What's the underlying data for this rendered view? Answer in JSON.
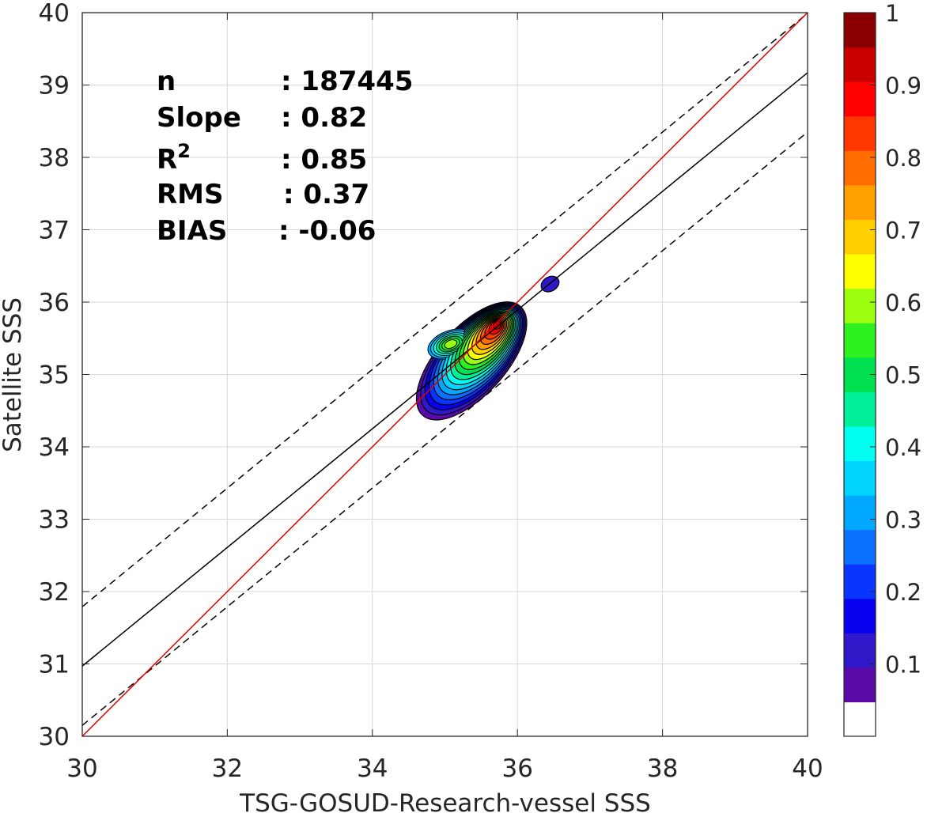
{
  "chart_data": {
    "type": "contour-scatter",
    "xlabel": "TSG-GOSUD-Research-vessel SSS",
    "ylabel": "Satellite SSS",
    "xlim": [
      30,
      40
    ],
    "ylim": [
      30,
      40
    ],
    "xticks": [
      "30",
      "32",
      "34",
      "36",
      "38",
      "40"
    ],
    "yticks": [
      "30",
      "31",
      "32",
      "33",
      "34",
      "35",
      "36",
      "37",
      "38",
      "39",
      "40"
    ],
    "grid": true,
    "stats": [
      {
        "label": "n",
        "sep": ": ",
        "value": "187445"
      },
      {
        "label": "Slope",
        "sep": ": ",
        "value": "0.82"
      },
      {
        "label": "R",
        "sup": "2",
        "sep": ": ",
        "value": "0.85"
      },
      {
        "label": "RMS",
        "sep": ": ",
        "value": "0.37"
      },
      {
        "label": "BIAS",
        "sep": ": ",
        "value": "-0.06"
      }
    ],
    "lines": {
      "identity": {
        "color": "#e00000",
        "from": [
          30,
          30
        ],
        "to": [
          40,
          40
        ]
      },
      "fit": {
        "color": "#000000",
        "from": [
          30,
          30.97
        ],
        "to": [
          40,
          39.17
        ]
      },
      "upper_bound": {
        "color": "#000000",
        "style": "dashed",
        "from": [
          30,
          31.79
        ],
        "to": [
          40,
          39.99
        ]
      },
      "lower_bound": {
        "color": "#000000",
        "style": "dashed",
        "from": [
          30,
          30.15
        ],
        "to": [
          40,
          38.35
        ]
      }
    },
    "density_contours": {
      "levels": [
        0.05,
        0.1,
        0.15,
        0.2,
        0.25,
        0.3,
        0.35,
        0.4,
        0.45,
        0.5,
        0.55,
        0.6,
        0.65,
        0.7,
        0.75,
        0.8,
        0.85,
        0.9,
        0.95
      ],
      "peak": [
        35.72,
        35.68
      ],
      "secondary_mode": [
        35.08,
        35.42
      ],
      "isolated_blob": [
        36.45,
        36.25
      ]
    },
    "colorbar": {
      "ticks": [
        "0.1",
        "0.2",
        "0.3",
        "0.4",
        "0.5",
        "0.6",
        "0.7",
        "0.8",
        "0.9",
        "1"
      ],
      "tick_values": [
        0.1,
        0.2,
        0.3,
        0.4,
        0.5,
        0.6,
        0.7,
        0.8,
        0.9,
        1.0
      ],
      "min": 0,
      "max": 1,
      "colors": [
        "#ffffff",
        "#5a0aa8",
        "#2e18c8",
        "#0a00f0",
        "#0836ff",
        "#0c70ff",
        "#00a8ff",
        "#00d4ff",
        "#00fff0",
        "#00f09a",
        "#00e050",
        "#2ef020",
        "#9cff10",
        "#ffff00",
        "#ffd000",
        "#ffa000",
        "#ff6c00",
        "#ff3800",
        "#ff0000",
        "#c80000",
        "#8a0000"
      ]
    }
  }
}
